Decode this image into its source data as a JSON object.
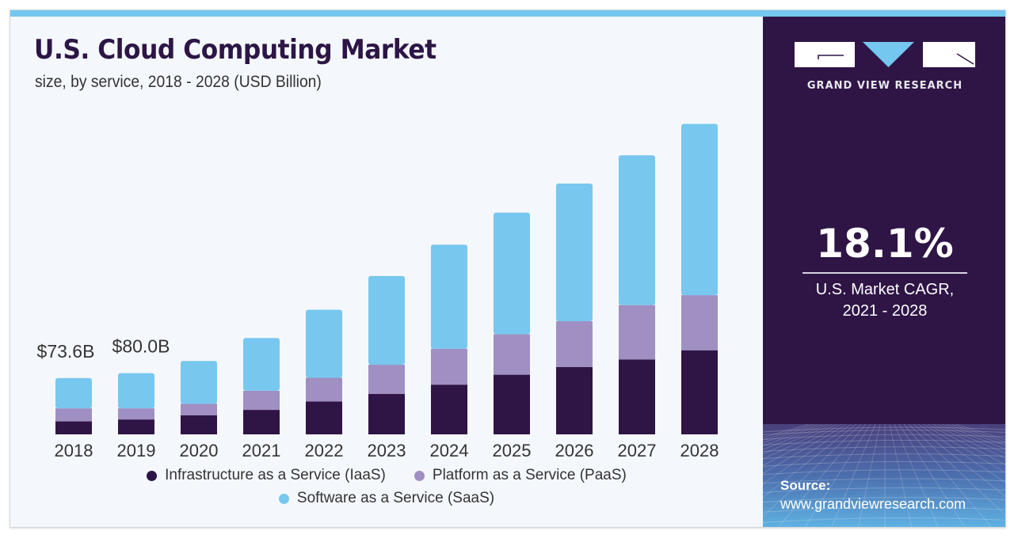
{
  "header": {
    "title": "U.S. Cloud Computing Market",
    "subtitle": "size, by service, 2018 - 2028 (USD Billion)"
  },
  "brand": {
    "name": "GRAND VIEW RESEARCH",
    "logo_icon": "gvr-logo-icon",
    "colors": {
      "dark": "#2f1546",
      "accent": "#74c7ee",
      "white": "#ffffff"
    }
  },
  "kpi": {
    "value": "18.1%",
    "caption_line1": "U.S. Market CAGR,",
    "caption_line2": "2021 - 2028"
  },
  "source": {
    "label": "Source:",
    "url": "www.grandviewresearch.com"
  },
  "chart_data": {
    "type": "bar",
    "stacked": true,
    "title": "U.S. Cloud Computing Market",
    "subtitle": "size, by service, 2018 - 2028 (USD Billion)",
    "xlabel": "",
    "ylabel": "USD Billion",
    "grid": false,
    "legend_position": "bottom",
    "ylim": [
      0,
      420
    ],
    "categories": [
      "2018",
      "2019",
      "2020",
      "2021",
      "2022",
      "2023",
      "2024",
      "2025",
      "2026",
      "2027",
      "2028"
    ],
    "series": [
      {
        "name": "Infrastructure as a Service (IaaS)",
        "color": "#2f1546",
        "values": [
          17,
          19.5,
          25,
          32,
          43,
          53,
          65,
          78,
          88,
          98,
          110
        ]
      },
      {
        "name": "Platform as a Service (PaaS)",
        "color": "#a08fc2",
        "values": [
          17,
          14.5,
          15,
          25,
          31,
          38,
          47,
          53,
          60,
          71,
          72
        ]
      },
      {
        "name": "Software as a Service (SaaS)",
        "color": "#77c7ef",
        "values": [
          39.6,
          46,
          56,
          69,
          89,
          116,
          136,
          159,
          180,
          196,
          224
        ]
      }
    ],
    "annotations": [
      {
        "category": "2018",
        "text": "$73.6B"
      },
      {
        "category": "2019",
        "text": "$80.0B"
      }
    ]
  }
}
